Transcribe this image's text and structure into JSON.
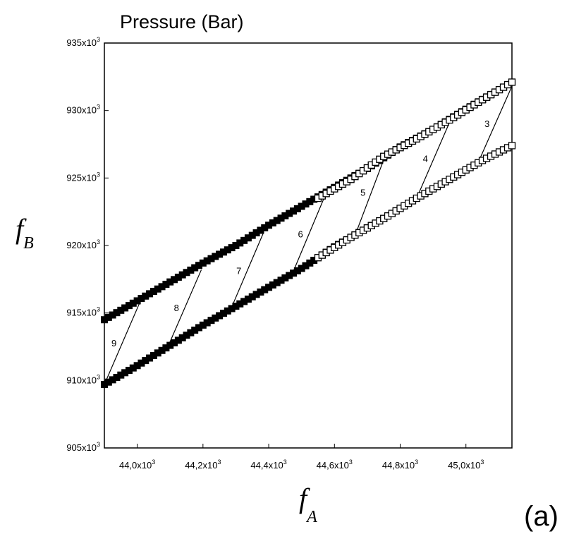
{
  "chart_data": {
    "type": "line",
    "title": "Pressure (Bar)",
    "xlabel": "f",
    "xlabel_subscript": "A",
    "ylabel": "f",
    "ylabel_subscript": "B",
    "panel_label": "(a)",
    "xlim": [
      43900,
      45140
    ],
    "ylim": [
      905000,
      935000
    ],
    "x_ticks": [
      44000,
      44200,
      44400,
      44600,
      44800,
      45000
    ],
    "x_tick_labels": [
      "44,0x10",
      "44,2x10",
      "44,4x10",
      "44,6x10",
      "44,8x10",
      "45,0x10"
    ],
    "x_tick_exponent": "3",
    "y_ticks": [
      905000,
      910000,
      915000,
      920000,
      925000,
      930000,
      935000
    ],
    "y_tick_labels": [
      "905x10",
      "910x10",
      "915x10",
      "920x10",
      "925x10",
      "930x10",
      "935x10"
    ],
    "y_tick_exponent": "3",
    "grid": false,
    "series": [
      {
        "marker": "filled-square-upper",
        "x": [
          43900,
          44000,
          44100,
          44200,
          44300,
          44400,
          44500,
          44600,
          44700,
          44800,
          44900,
          45000,
          45140
        ],
        "y": [
          914500,
          915900,
          917300,
          918700,
          920000,
          921500,
          922900,
          924300,
          925700,
          927300,
          928600,
          930100,
          932100
        ]
      },
      {
        "marker": "open-square-upper",
        "x": [
          44550,
          44650,
          44750,
          44850,
          44950,
          45050,
          45140
        ],
        "y": [
          923500,
          924900,
          926600,
          927900,
          929300,
          930800,
          932100
        ]
      },
      {
        "marker": "filled-square-lower",
        "x": [
          43900,
          44000,
          44100,
          44200,
          44300,
          44400,
          44500,
          44600,
          44700,
          44750
        ],
        "y": [
          909700,
          911100,
          912600,
          914100,
          915500,
          916900,
          918300,
          919900,
          921300,
          922000
        ]
      },
      {
        "marker": "open-square-lower",
        "x": [
          44550,
          44650,
          44750,
          44850,
          44950,
          45050,
          45140
        ],
        "y": [
          919100,
          920600,
          922000,
          923500,
          924900,
          926300,
          927400
        ]
      }
    ],
    "isolines": [
      {
        "label": "3",
        "x": [
          45040,
          45140
        ],
        "y": [
          926300,
          931800
        ]
      },
      {
        "label": "4",
        "x": [
          44850,
          44955
        ],
        "y": [
          923500,
          929400
        ]
      },
      {
        "label": "5",
        "x": [
          44665,
          44760
        ],
        "y": [
          920900,
          927000
        ]
      },
      {
        "label": "6",
        "x": [
          44470,
          44575
        ],
        "y": [
          917800,
          923900
        ]
      },
      {
        "label": "7",
        "x": [
          44285,
          44385
        ],
        "y": [
          915300,
          921000
        ]
      },
      {
        "label": "8",
        "x": [
          44095,
          44195
        ],
        "y": [
          912600,
          918200
        ]
      },
      {
        "label": "9",
        "x": [
          43900,
          44010
        ],
        "y": [
          909700,
          915900
        ]
      }
    ]
  }
}
